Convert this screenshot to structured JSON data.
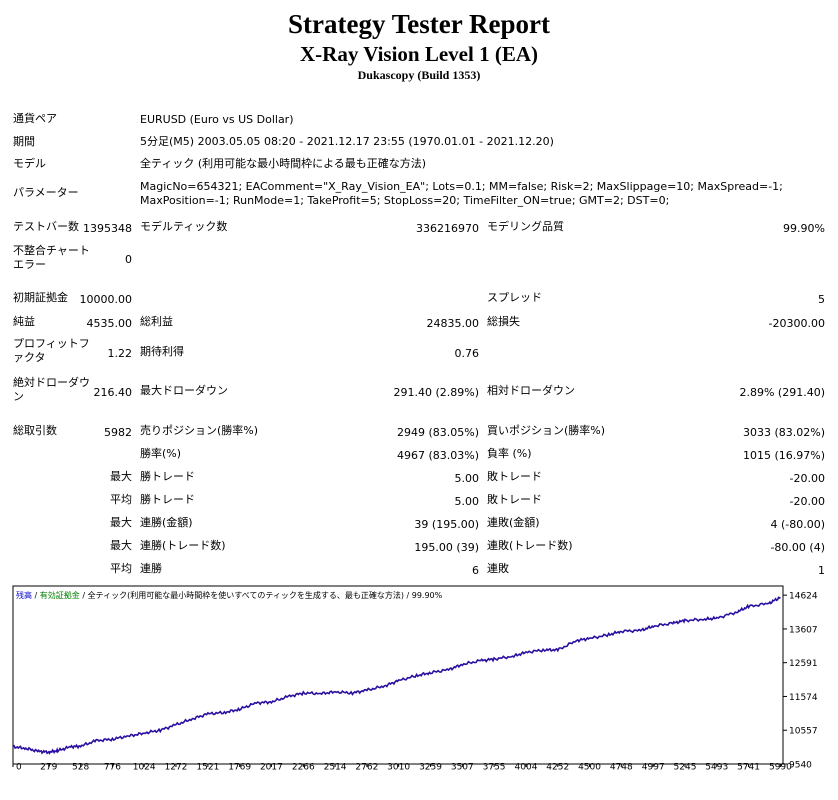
{
  "header": {
    "title": "Strategy Tester Report",
    "subtitle": "X-Ray Vision Level 1 (EA)",
    "build": "Dukascopy (Build 1353)"
  },
  "info": {
    "symbol_label": "通貨ペア",
    "symbol_value": "EURUSD (Euro vs US Dollar)",
    "period_label": "期間",
    "period_value": "5分足(M5) 2003.05.05 08:20 - 2021.12.17 23:55 (1970.01.01 - 2021.12.20)",
    "model_label": "モデル",
    "model_value": "全ティック (利用可能な最小時間枠による最も正確な方法)",
    "params_label": "パラメーター",
    "params_value": "MagicNo=654321; EAComment=\"X_Ray_Vision_EA\"; Lots=0.1; MM=false; Risk=2; MaxSlippage=10; MaxSpread=-1; MaxPosition=-1; RunMode=1; TakeProfit=5; StopLoss=20; TimeFilter_ON=true; GMT=2; DST=0;"
  },
  "stats": {
    "bars_label": "テストバー数",
    "bars_value": "1395348",
    "ticks_label": "モデルティック数",
    "ticks_value": "336216970",
    "quality_label": "モデリング品質",
    "quality_value": "99.90%",
    "mismatch_label": "不整合チャートエラー",
    "mismatch_value": "0",
    "deposit_label": "初期証拠金",
    "deposit_value": "10000.00",
    "spread_label": "スプレッド",
    "spread_value": "5",
    "net_label": "純益",
    "net_value": "4535.00",
    "gross_profit_label": "総利益",
    "gross_profit_value": "24835.00",
    "gross_loss_label": "総損失",
    "gross_loss_value": "-20300.00",
    "pf_label": "プロフィットファクタ",
    "pf_value": "1.22",
    "expected_label": "期待利得",
    "expected_value": "0.76",
    "abs_dd_label": "絶対ドローダウン",
    "abs_dd_value": "216.40",
    "max_dd_label": "最大ドローダウン",
    "max_dd_value": "291.40 (2.89%)",
    "rel_dd_label": "相対ドローダウン",
    "rel_dd_value": "2.89% (291.40)",
    "trades_label": "総取引数",
    "trades_value": "5982",
    "short_label": "売りポジション(勝率%)",
    "short_value": "2949 (83.05%)",
    "long_label": "買いポジション(勝率%)",
    "long_value": "3033 (83.02%)",
    "win_label": "勝率(%)",
    "win_value": "4967 (83.03%)",
    "loss_label": "負率 (%)",
    "loss_value": "1015 (16.97%)",
    "largest_label": "最大",
    "largest_win_label": "勝トレード",
    "largest_win_value": "5.00",
    "largest_loss_label": "敗トレード",
    "largest_loss_value": "-20.00",
    "average_label": "平均",
    "average_win_label": "勝トレード",
    "average_win_value": "5.00",
    "average_loss_label": "敗トレード",
    "average_loss_value": "-20.00",
    "maxcons_label": "最大",
    "maxcons_win_label": "連勝(金額)",
    "maxcons_win_value": "39 (195.00)",
    "maxcons_loss_label": "連敗(金額)",
    "maxcons_loss_value": "4 (-80.00)",
    "maxconsp_label": "最大",
    "maxconsp_win_label": "連勝(トレード数)",
    "maxconsp_win_value": "195.00 (39)",
    "maxconsp_loss_label": "連敗(トレード数)",
    "maxconsp_loss_value": "-80.00 (4)",
    "avgcons_label": "平均",
    "avgcons_win_label": "連勝",
    "avgcons_win_value": "6",
    "avgcons_loss_label": "連敗",
    "avgcons_loss_value": "1"
  },
  "chart_data": {
    "type": "line",
    "legend": [
      {
        "text": "残高",
        "color": "#0000cc"
      },
      {
        "text": " / ",
        "color": "#000000"
      },
      {
        "text": "有効証拠金",
        "color": "#008000"
      },
      {
        "text": " / 全ティック(利用可能な最小時間枠を使いすべてのティックを生成する、最も正確な方法) / 99.90%",
        "color": "#000000"
      }
    ],
    "x_ticks": [
      0,
      279,
      528,
      776,
      1024,
      1272,
      1521,
      1769,
      2017,
      2266,
      2514,
      2762,
      3010,
      3259,
      3507,
      3755,
      4004,
      4252,
      4500,
      4748,
      4997,
      5245,
      5493,
      5741,
      5990
    ],
    "y_ticks": [
      9540,
      10557,
      11574,
      12591,
      13607,
      14624
    ],
    "xlim": [
      0,
      6010
    ],
    "ylim": [
      9540,
      14900
    ],
    "series": [
      {
        "color": "#2b0fa0",
        "x": [
          0,
          100,
          200,
          279,
          350,
          450,
          528,
          650,
          776,
          900,
          1024,
          1150,
          1272,
          1400,
          1521,
          1650,
          1769,
          1900,
          2017,
          2150,
          2266,
          2400,
          2514,
          2650,
          2762,
          2900,
          3010,
          3150,
          3259,
          3400,
          3507,
          3650,
          3755,
          3900,
          4004,
          4150,
          4252,
          4400,
          4500,
          4650,
          4748,
          4900,
          4997,
          5150,
          5245,
          5400,
          5493,
          5650,
          5741,
          5900,
          5990
        ],
        "y": [
          10060,
          10010,
          9920,
          9900,
          9940,
          10060,
          10080,
          10240,
          10290,
          10380,
          10470,
          10560,
          10720,
          10900,
          11050,
          11090,
          11190,
          11380,
          11410,
          11570,
          11680,
          11660,
          11710,
          11680,
          11760,
          11890,
          12050,
          12200,
          12290,
          12380,
          12540,
          12650,
          12700,
          12780,
          12900,
          12980,
          12970,
          13260,
          13320,
          13430,
          13540,
          13560,
          13690,
          13780,
          13860,
          13900,
          13930,
          14120,
          14280,
          14380,
          14560
        ]
      }
    ]
  }
}
